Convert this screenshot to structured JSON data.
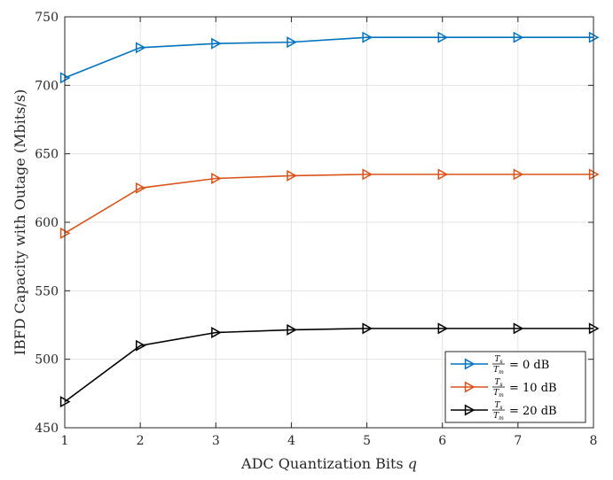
{
  "chart_data": {
    "type": "line",
    "xlabel": "ADC Quantization Bits",
    "xlabel_var": "q",
    "ylabel": "IBFD Capacity with Outage (Mbits/s)",
    "x": [
      1,
      2,
      3,
      4,
      5,
      6,
      7,
      8
    ],
    "xlim": [
      1,
      8
    ],
    "ylim": [
      450,
      750
    ],
    "xticks": [
      "1",
      "2",
      "3",
      "4",
      "5",
      "6",
      "7",
      "8"
    ],
    "yticks": [
      "450",
      "500",
      "550",
      "600",
      "650",
      "700",
      "750"
    ],
    "grid": true,
    "legend_position": "bottom-right",
    "series": [
      {
        "name": "Ts/Tm = 0 dB",
        "frac_num": "T",
        "frac_num_sub": "s",
        "frac_den": "T",
        "frac_den_sub": "m",
        "suffix": "= 0 dB",
        "color": "#0072BD",
        "marker": "triangle-right",
        "values": [
          705.5,
          727.5,
          730.5,
          731.5,
          735,
          735,
          735,
          735
        ]
      },
      {
        "name": "Ts/Tm = 10 dB",
        "frac_num": "T",
        "frac_num_sub": "s",
        "frac_den": "T",
        "frac_den_sub": "m",
        "suffix": "= 10 dB",
        "color": "#D95319",
        "marker": "triangle-right",
        "values": [
          592,
          625,
          632,
          634,
          635,
          635,
          635,
          635
        ]
      },
      {
        "name": "Ts/Tm = 20 dB",
        "frac_num": "T",
        "frac_num_sub": "s",
        "frac_den": "T",
        "frac_den_sub": "m",
        "suffix": "= 20 dB",
        "color": "#000000",
        "marker": "triangle-right",
        "values": [
          469,
          510,
          519.5,
          521.5,
          522.5,
          522.5,
          522.5,
          522.5
        ]
      }
    ]
  }
}
